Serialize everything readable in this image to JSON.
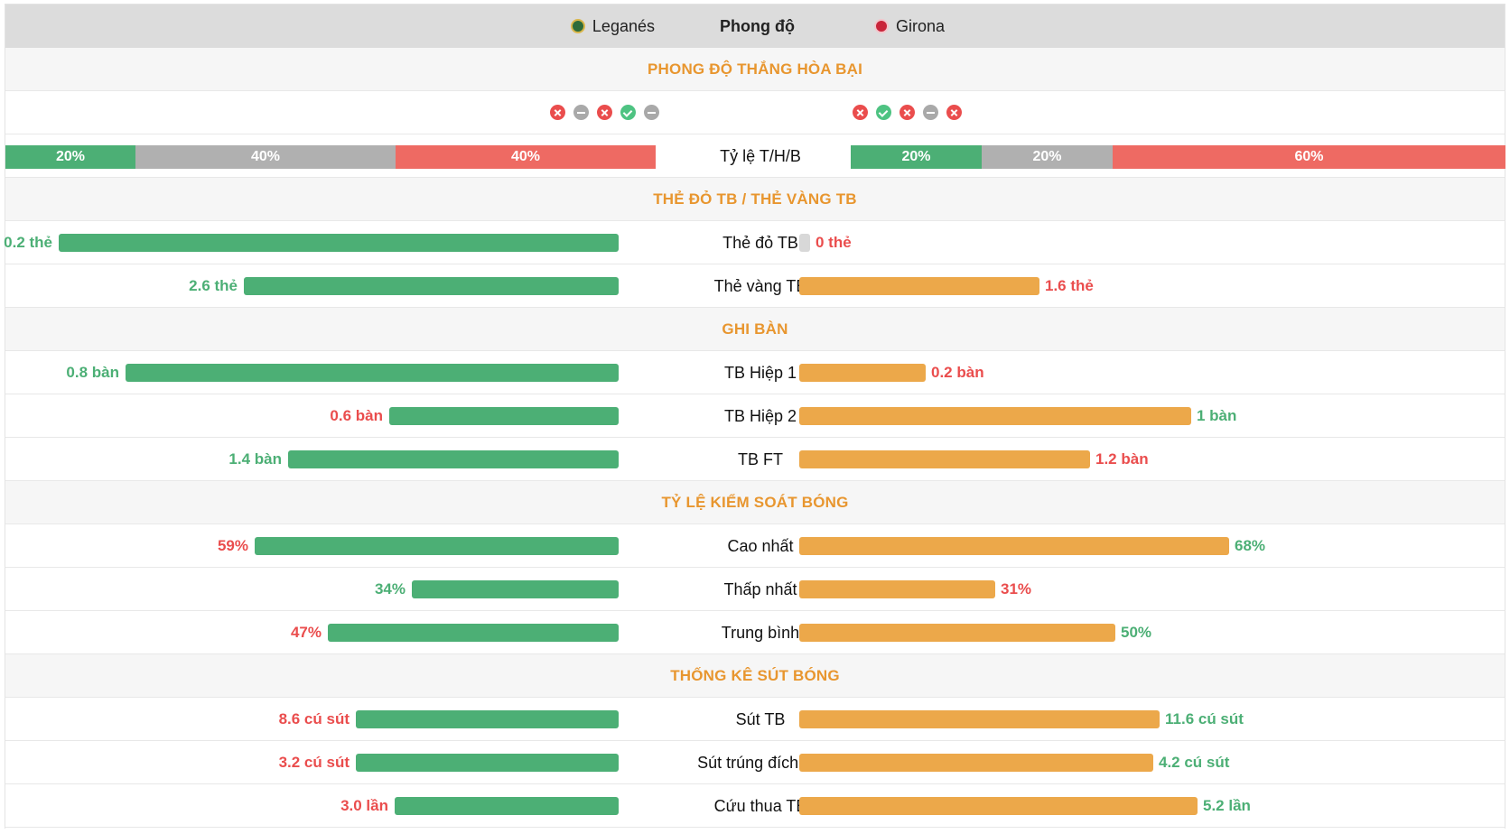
{
  "header": {
    "home_team": "Leganés",
    "center": "Phong độ",
    "away_team": "Girona"
  },
  "sections": {
    "form": "PHONG ĐỘ THẮNG HÒA BẠI",
    "cards": "THẺ ĐỎ TB / THẺ VÀNG TB",
    "goals": "GHI BÀN",
    "possession": "TỶ LỆ KIỂM SOÁT BÓNG",
    "shots": "THỐNG KÊ SÚT BÓNG"
  },
  "form": {
    "home": [
      "L",
      "D",
      "L",
      "W",
      "D"
    ],
    "away": [
      "L",
      "W",
      "L",
      "D",
      "L"
    ]
  },
  "ratio": {
    "label": "Tỷ lệ T/H/B",
    "home": {
      "win": "20%",
      "draw": "40%",
      "loss": "40%"
    },
    "away": {
      "win": "20%",
      "draw": "20%",
      "loss": "60%"
    }
  },
  "colors": {
    "accent": "#e8962f",
    "home_bar": "#4caf75",
    "away_bar": "#eca84a",
    "good_text": "#4caf75",
    "bad_text": "#ea4d4d"
  },
  "stats": [
    {
      "id": "red-cards",
      "label": "Thẻ đỏ TB",
      "home": "0.2 thẻ",
      "away": "0 thẻ",
      "home_ratio": 1.0,
      "away_ratio": 0.0
    },
    {
      "id": "yellow-cards",
      "label": "Thẻ vàng TB",
      "home": "2.6 thẻ",
      "away": "1.6 thẻ",
      "home_ratio": 0.67,
      "away_ratio": 0.38
    },
    {
      "id": "goals-half1",
      "label": "TB Hiệp 1",
      "home": "0.8 bàn",
      "away": "0.2 bàn",
      "home_ratio": 0.88,
      "away_ratio": 0.2
    },
    {
      "id": "goals-half2",
      "label": "TB Hiệp 2",
      "home": "0.6 bàn",
      "away": "1 bàn",
      "home_ratio": 0.41,
      "away_ratio": 0.62
    },
    {
      "id": "goals-ft",
      "label": "TB FT",
      "home": "1.4 bàn",
      "away": "1.2 bàn",
      "home_ratio": 0.59,
      "away_ratio": 0.46
    },
    {
      "id": "poss-max",
      "label": "Cao nhất",
      "home": "59%",
      "away": "68%",
      "home_ratio": 0.65,
      "away_ratio": 0.68
    },
    {
      "id": "poss-min",
      "label": "Thấp nhất",
      "home": "34%",
      "away": "31%",
      "home_ratio": 0.37,
      "away_ratio": 0.31
    },
    {
      "id": "poss-avg",
      "label": "Trung bình",
      "home": "47%",
      "away": "50%",
      "home_ratio": 0.52,
      "away_ratio": 0.5
    },
    {
      "id": "shots-avg",
      "label": "Sút TB",
      "home": "8.6 cú sút",
      "away": "11.6 cú sút",
      "home_ratio": 0.47,
      "away_ratio": 0.57
    },
    {
      "id": "shots-target",
      "label": "Sút trúng đích TB",
      "home": "3.2 cú sút",
      "away": "4.2 cú sút",
      "home_ratio": 0.47,
      "away_ratio": 0.56
    },
    {
      "id": "saves-avg",
      "label": "Cứu thua TB",
      "home": "3.0 lần",
      "away": "5.2 lần",
      "home_ratio": 0.4,
      "away_ratio": 0.63
    }
  ],
  "stat_text_colors": {
    "red-cards": {
      "home": "green",
      "away": "red"
    },
    "yellow-cards": {
      "home": "green",
      "away": "red"
    },
    "goals-half1": {
      "home": "green",
      "away": "red"
    },
    "goals-half2": {
      "home": "red",
      "away": "green"
    },
    "goals-ft": {
      "home": "green",
      "away": "red"
    },
    "poss-max": {
      "home": "red",
      "away": "green"
    },
    "poss-min": {
      "home": "green",
      "away": "red"
    },
    "poss-avg": {
      "home": "red",
      "away": "green"
    },
    "shots-avg": {
      "home": "red",
      "away": "green"
    },
    "shots-target": {
      "home": "red",
      "away": "green"
    },
    "saves-avg": {
      "home": "red",
      "away": "green"
    }
  }
}
